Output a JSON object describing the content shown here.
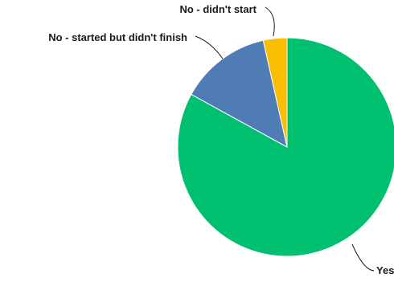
{
  "chart_data": {
    "type": "pie",
    "title": "",
    "slices": [
      {
        "label": "Yes",
        "value": 83.0,
        "color": "#00bf6f"
      },
      {
        "label": "No - started but didn't finish",
        "value": 13.5,
        "color": "#507cb6"
      },
      {
        "label": "No - didn't start",
        "value": 3.5,
        "color": "#f9be00"
      }
    ],
    "legend": "none",
    "label_style": "outside with leader lines"
  }
}
